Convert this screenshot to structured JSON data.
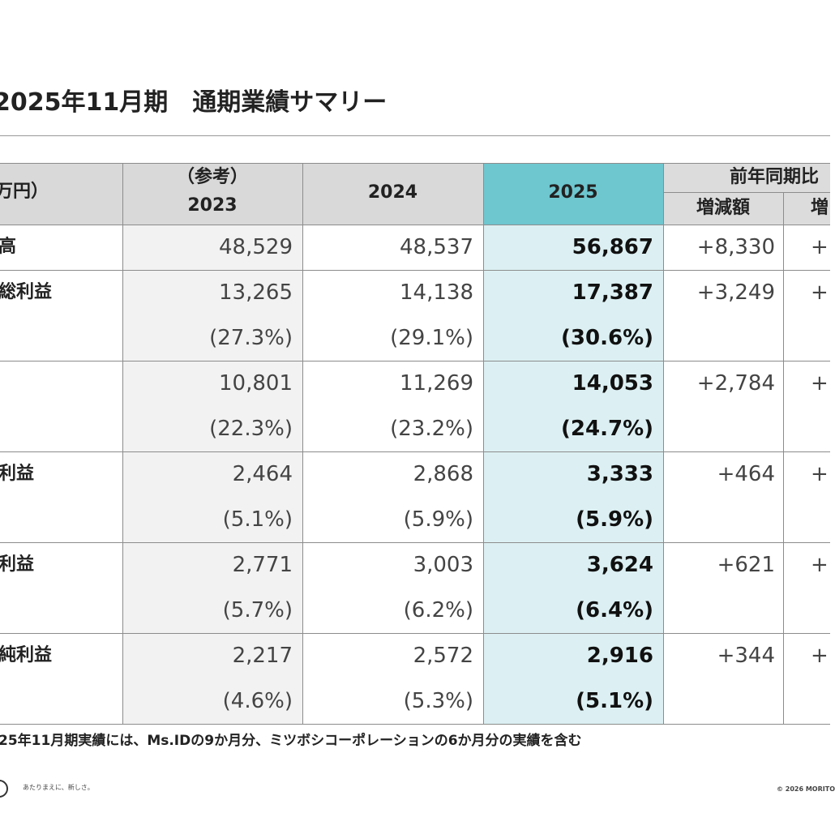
{
  "header": {
    "title": "2025年11月期　通期業績サマリー"
  },
  "table": {
    "unit": "万円）",
    "columns": {
      "note_2023": "（参考）",
      "y2023": "2023",
      "y2024": "2024",
      "y2025": "2025",
      "group": "前年同期比",
      "diff": "増減額",
      "rate": "増"
    },
    "rows": [
      {
        "label": "高",
        "values": [
          "48,529",
          "48,537",
          "56,867"
        ],
        "diff": "+8,330",
        "rate": "+"
      },
      {
        "label": "総利益",
        "values": [
          "13,265",
          "14,138",
          "17,387"
        ],
        "ratios": [
          "(27.3%)",
          "(29.1%)",
          "(30.6%)"
        ],
        "diff": "+3,249",
        "rate": "+"
      },
      {
        "values": [
          "10,801",
          "11,269",
          "14,053"
        ],
        "ratios": [
          "(22.3%)",
          "(23.2%)",
          "(24.7%)"
        ],
        "diff": "+2,784",
        "rate": "+"
      },
      {
        "label": "利益",
        "values": [
          "2,464",
          "2,868",
          "3,333"
        ],
        "ratios": [
          "(5.1%)",
          "(5.9%)",
          "(5.9%)"
        ],
        "diff": "+464",
        "rate": "+"
      },
      {
        "label": "利益",
        "values": [
          "2,771",
          "3,003",
          "3,624"
        ],
        "ratios": [
          "(5.7%)",
          "(6.2%)",
          "(6.4%)"
        ],
        "diff": "+621",
        "rate": "+"
      },
      {
        "label": "純利益",
        "values": [
          "2,217",
          "2,572",
          "2,916"
        ],
        "ratios": [
          "(4.6%)",
          "(5.3%)",
          "(5.1%)"
        ],
        "diff": "+344",
        "rate": "+"
      }
    ]
  },
  "footer": {
    "note": "25年11月期実績には、Ms.IDの9か月分、ミツボシコーポレーションの6か月分の実績を含む",
    "tagline": "あたりまえに、新しさ。",
    "copyright": "© 2026 MORITO"
  }
}
